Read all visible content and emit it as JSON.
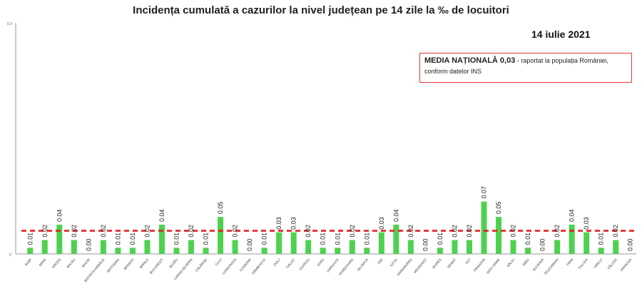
{
  "chart_data": {
    "type": "bar",
    "title": "Incidența cumulată a cazurilor la nivel județean pe 14 zile   la ‰ de locuitori",
    "date": "14 iulie 2021",
    "note_bold": "MEDIA NAȚIONALĂ 0,03",
    "note_text": "- raportat la populația României, conform datelor INS",
    "ylim": [
      0,
      0.3
    ],
    "ytick_labels": [
      "0",
      "0.3"
    ],
    "reference_value": 0.03,
    "colors": {
      "bar": "#4fd14f",
      "reference": "#e02020",
      "axis": "#9a9a9a"
    },
    "categories": [
      "ALBA",
      "ARAD",
      "ARGEȘ",
      "BACĂU",
      "BIHOR",
      "BISTRIȚA-NĂSĂUD",
      "BOTOȘANI",
      "BRAȘOV",
      "BRĂILA",
      "BUCUREȘTI",
      "BUZĂU",
      "CARAȘ-SEVERIN",
      "CĂLĂRAȘI",
      "CLUJ",
      "CONSTANȚA",
      "COVASNA",
      "DÂMBOVIȚA",
      "DOLJ",
      "GALAȚI",
      "GIURGIU",
      "GORJ",
      "HARGHITA",
      "HUNEDOARA",
      "IALOMIȚA",
      "IAȘI",
      "ILFOV",
      "MARAMUREȘ",
      "MEHEDINȚI",
      "MUREȘ",
      "NEAMȚ",
      "OLT",
      "PRAHOVA",
      "SATU MARE",
      "SĂLAJ",
      "SIBIU",
      "SUCEAVA",
      "TELEORMAN",
      "TIMIȘ",
      "TULCEA",
      "VASLUI",
      "VÂLCEA",
      "VRANCEA"
    ],
    "values": [
      0.008,
      0.018,
      0.038,
      0.018,
      0.0,
      0.018,
      0.008,
      0.008,
      0.018,
      0.038,
      0.008,
      0.018,
      0.008,
      0.048,
      0.018,
      0.0,
      0.008,
      0.028,
      0.028,
      0.018,
      0.008,
      0.008,
      0.018,
      0.008,
      0.028,
      0.038,
      0.018,
      0.0,
      0.008,
      0.018,
      0.018,
      0.068,
      0.048,
      0.018,
      0.008,
      0.0,
      0.018,
      0.038,
      0.028,
      0.008,
      0.018,
      0.0
    ],
    "value_labels": [
      "0.01",
      "0.02",
      "0.04",
      "0.02",
      "0.00",
      "0.02",
      "0.01",
      "0.01",
      "0.02",
      "0.04",
      "0.01",
      "0.02",
      "0.01",
      "0.05",
      "0.02",
      "0.00",
      "0.01",
      "0.03",
      "0.03",
      "0.02",
      "0.01",
      "0.01",
      "0.02",
      "0.01",
      "0.03",
      "0.04",
      "0.02",
      "0.00",
      "0.01",
      "0.02",
      "0.02",
      "0.07",
      "0.05",
      "0.02",
      "0.01",
      "0.00",
      "0.02",
      "0.04",
      "0.03",
      "0.01",
      "0.02",
      "0.00"
    ]
  }
}
